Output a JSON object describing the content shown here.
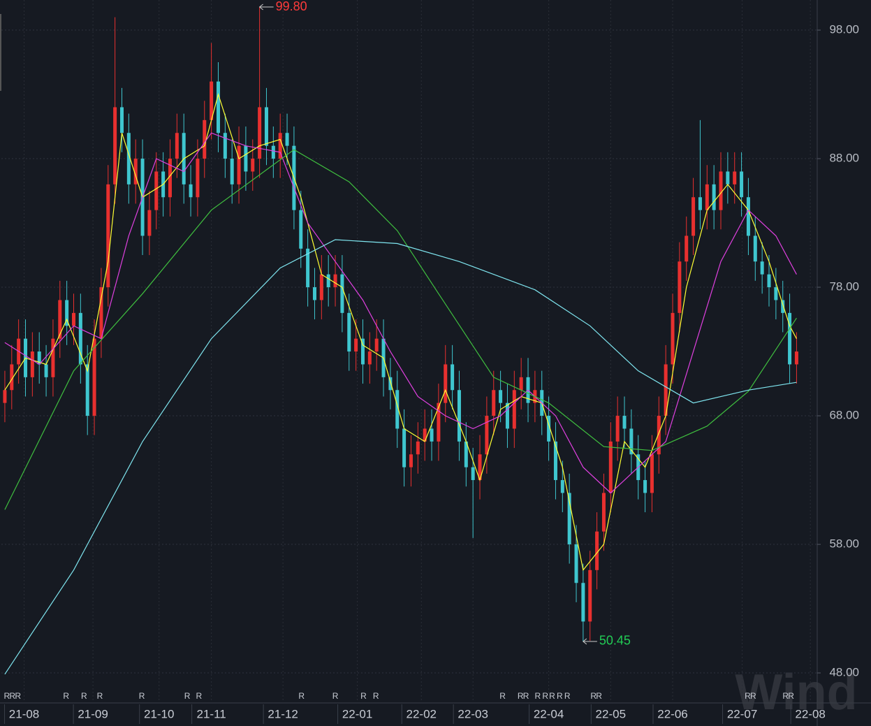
{
  "chart_data": {
    "type": "candlestick",
    "x": [
      0,
      1,
      2,
      3,
      4,
      5,
      6,
      7,
      8,
      9,
      10,
      11,
      12,
      13,
      14,
      15,
      16,
      17,
      18,
      19,
      20,
      21,
      22,
      23,
      24,
      25,
      26,
      27,
      28,
      29,
      30,
      31,
      32,
      33,
      34,
      35,
      36,
      37,
      38,
      39,
      40,
      41,
      42,
      43,
      44,
      45,
      46,
      47,
      48,
      49,
      50,
      51,
      52,
      53,
      54,
      55,
      56,
      57,
      58,
      59,
      60,
      61,
      62,
      63,
      64,
      65,
      66,
      67,
      68,
      69,
      70,
      71,
      72,
      73,
      74,
      75,
      76,
      77,
      78,
      79,
      80,
      81,
      82,
      83,
      84,
      85,
      86,
      87,
      88,
      89,
      90,
      91,
      92,
      93,
      94,
      95,
      96,
      97,
      98,
      99,
      100,
      101,
      102,
      103,
      104,
      105,
      106,
      107,
      108,
      109,
      110,
      111,
      112,
      113,
      114,
      115
    ],
    "open": [
      69,
      70,
      72,
      74,
      71,
      73,
      72,
      71,
      74,
      77,
      75,
      76,
      72,
      68,
      74,
      78,
      86,
      92,
      90,
      86,
      88,
      82,
      84,
      87,
      85,
      88,
      90,
      86,
      85,
      88,
      91,
      94,
      90,
      88,
      86,
      89,
      87,
      88,
      92,
      89,
      88,
      90,
      89,
      84,
      81,
      78,
      77,
      79,
      78,
      79,
      76,
      73,
      74,
      72,
      73,
      74,
      71,
      70,
      67,
      64,
      65,
      66,
      67,
      66,
      69,
      72,
      70,
      66,
      64,
      63,
      65,
      68,
      70,
      69,
      67,
      70,
      71,
      69,
      70,
      68,
      66,
      63,
      62,
      58,
      55,
      52,
      56,
      59,
      62,
      66,
      68,
      67,
      65,
      63,
      62,
      65,
      68,
      72,
      76,
      80,
      82,
      85,
      84,
      86,
      84,
      87,
      86,
      87,
      85,
      82,
      80,
      79,
      78,
      77,
      76,
      72
    ],
    "high": [
      71.5,
      73.5,
      75.5,
      75.5,
      74.5,
      74.5,
      73.5,
      75.5,
      78.5,
      78.5,
      77.5,
      77.5,
      73.5,
      75.5,
      79.5,
      87.5,
      99,
      93.5,
      91.5,
      89.5,
      89.5,
      85.5,
      88.5,
      88.5,
      89.5,
      91.5,
      91.5,
      87.5,
      89.5,
      92.5,
      97,
      95.5,
      91.5,
      89.5,
      90.5,
      90.5,
      89.5,
      99.8,
      93.5,
      90.5,
      91.5,
      91.5,
      90.5,
      85.5,
      82.5,
      79.5,
      80.5,
      80.5,
      80.5,
      80.5,
      77.5,
      75.5,
      75.5,
      74.5,
      75.5,
      75.5,
      72.5,
      71.5,
      68.5,
      66.5,
      67.5,
      68.5,
      68.5,
      70.5,
      73.5,
      73.5,
      71.5,
      67.5,
      65.5,
      66.5,
      69.5,
      71.5,
      71.5,
      70.5,
      71.5,
      72.5,
      72.5,
      71.5,
      71.5,
      69.5,
      67.5,
      64.5,
      63.5,
      59.5,
      56.5,
      57.5,
      60.5,
      63.5,
      67.5,
      69.5,
      69.5,
      68.5,
      66.5,
      64.5,
      66.5,
      69.5,
      73.5,
      77.5,
      81.5,
      83.5,
      86.5,
      91,
      87.5,
      87.5,
      88.5,
      88.5,
      88.5,
      88.5,
      86.5,
      83.5,
      81.5,
      80.5,
      79.5,
      78.5,
      77.5,
      74.5
    ],
    "low": [
      67.5,
      68.5,
      70.5,
      69.5,
      69.5,
      70.5,
      69.5,
      69.5,
      72.5,
      73.5,
      73.5,
      70.5,
      66.5,
      66.5,
      72.5,
      76.5,
      84.5,
      88.5,
      84.5,
      84.5,
      80.5,
      80.5,
      82.5,
      83.5,
      83.5,
      86.5,
      84.5,
      83.5,
      83.5,
      86.5,
      89.5,
      88.5,
      86.5,
      84.5,
      84.5,
      85.5,
      85.5,
      86.5,
      87.5,
      86.5,
      86.5,
      87.5,
      82.5,
      79.5,
      76.5,
      75.5,
      75.5,
      76.5,
      76.5,
      74.5,
      71.5,
      71.5,
      70.5,
      70.5,
      71.5,
      69.5,
      68.5,
      65.5,
      62.5,
      62.5,
      63.5,
      64.5,
      64.5,
      64.5,
      67.5,
      68.5,
      64.5,
      62.5,
      58.5,
      61.5,
      63.5,
      66.5,
      67.5,
      65.5,
      65.5,
      68.5,
      67.5,
      67.5,
      66.5,
      64.5,
      61.5,
      60.5,
      56.5,
      53.5,
      50.45,
      50.5,
      54.5,
      57.5,
      60.5,
      64.5,
      65.5,
      63.5,
      61.5,
      60.5,
      60.5,
      63.5,
      66.5,
      70.5,
      74.5,
      78.5,
      80.5,
      82.5,
      82.5,
      82.5,
      82.5,
      84.5,
      84.5,
      83.5,
      80.5,
      78.5,
      77.5,
      76.5,
      75.5,
      74.5,
      70.5,
      70.5
    ],
    "close": [
      70,
      72,
      74,
      71,
      73,
      72,
      71,
      74,
      77,
      75,
      76,
      72,
      68,
      74,
      78,
      86,
      92,
      90,
      86,
      88,
      82,
      84,
      87,
      85,
      88,
      90,
      86,
      85,
      88,
      91,
      94,
      90,
      88,
      86,
      89,
      87,
      88,
      92,
      89,
      88,
      90,
      89,
      84,
      81,
      78,
      77,
      79,
      78,
      79,
      76,
      73,
      74,
      72,
      73,
      74,
      71,
      70,
      67,
      64,
      65,
      66,
      67,
      66,
      69,
      72,
      70,
      66,
      64,
      63,
      65,
      68,
      70,
      69,
      67,
      70,
      71,
      69,
      70,
      68,
      66,
      63,
      62,
      58,
      55,
      52,
      56,
      59,
      62,
      66,
      68,
      67,
      65,
      63,
      62,
      65,
      68,
      72,
      76,
      80,
      82,
      85,
      84,
      86,
      84,
      87,
      86,
      87,
      85,
      82,
      80,
      79,
      78,
      77,
      76,
      72,
      73
    ],
    "up_color": "#e8302f",
    "down_color": "#3fc6cf",
    "lines": [
      {
        "color": "#ffff33",
        "x": [
          0,
          3,
          6,
          9,
          12,
          15,
          17,
          20,
          23,
          26,
          29,
          31,
          34,
          37,
          40,
          43,
          46,
          49,
          52,
          55,
          58,
          61,
          64,
          67,
          69,
          72,
          75,
          78,
          81,
          84,
          87,
          90,
          93,
          96,
          99,
          102,
          105,
          108,
          111,
          114,
          115
        ],
        "values": [
          70,
          72.5,
          72,
          75.5,
          71.5,
          80,
          90,
          85,
          86,
          88,
          89,
          93,
          88,
          89,
          89.5,
          85,
          79,
          78,
          73.5,
          72.5,
          67,
          66,
          70,
          66,
          63,
          68.5,
          69.5,
          69,
          64,
          56,
          58,
          66,
          64,
          68,
          78,
          84,
          86,
          84,
          80,
          75,
          74
        ]
      },
      {
        "color": "#e040e0",
        "x": [
          0,
          5,
          10,
          14,
          18,
          22,
          26,
          30,
          35,
          40,
          44,
          48,
          52,
          56,
          60,
          64,
          68,
          72,
          76,
          80,
          84,
          88,
          92,
          96,
          100,
          104,
          108,
          112,
          115
        ],
        "values": [
          73.7,
          72,
          75,
          74,
          82,
          88,
          87,
          90,
          89,
          88.5,
          83,
          80,
          77,
          73,
          69.5,
          68,
          67,
          68,
          70,
          68,
          64,
          62,
          64,
          66,
          73,
          80,
          84,
          82,
          79
        ]
      },
      {
        "color": "#3fbf3f",
        "x": [
          0,
          10,
          20,
          30,
          42,
          50,
          57,
          63,
          71,
          79,
          87,
          94,
          102,
          108,
          115
        ],
        "values": [
          60.7,
          71.5,
          77.5,
          84,
          88.7,
          86.2,
          82.4,
          77.5,
          71,
          69,
          65.6,
          65.3,
          67.2,
          69.9,
          75.6
        ]
      },
      {
        "color": "#7fe6f0",
        "x": [
          0,
          10,
          20,
          30,
          40,
          48,
          57,
          66,
          77,
          85,
          92,
          100,
          108,
          115
        ],
        "values": [
          47.9,
          56,
          66,
          74,
          79.5,
          81.7,
          81.4,
          80,
          77.8,
          75,
          71.5,
          69,
          70,
          70.6
        ]
      }
    ],
    "xlim": [
      -0.5,
      118
    ],
    "xticks": [
      {
        "value": 2.8,
        "label": "21-08"
      },
      {
        "value": 12.8,
        "label": "21-09"
      },
      {
        "value": 22.4,
        "label": "21-10"
      },
      {
        "value": 30,
        "label": "21-11"
      },
      {
        "value": 40.4,
        "label": "21-12"
      },
      {
        "value": 51.2,
        "label": "22-01"
      },
      {
        "value": 60.5,
        "label": "22-02"
      },
      {
        "value": 68,
        "label": "22-03"
      },
      {
        "value": 79,
        "label": "22-04"
      },
      {
        "value": 88,
        "label": "22-05"
      },
      {
        "value": 97,
        "label": "22-06"
      },
      {
        "value": 107.1,
        "label": "22-07"
      },
      {
        "value": 117,
        "label": "22-08"
      }
    ],
    "ylim": [
      45.72,
      100.34
    ],
    "yticks": [
      {
        "value": 48,
        "label": "48.00"
      },
      {
        "value": 58,
        "label": "58.00"
      },
      {
        "value": 68,
        "label": "68.00"
      },
      {
        "value": 78,
        "label": "78.00"
      },
      {
        "value": 88,
        "label": "88.00"
      },
      {
        "value": 98,
        "label": "98.00"
      }
    ],
    "grid": true,
    "annotations": [
      {
        "text": "99.80",
        "x": 37,
        "y": 99.8,
        "color": "#ff3b3b"
      },
      {
        "text": "50.45",
        "x": 84,
        "y": 50.45,
        "color": "#22cc55"
      }
    ],
    "r_markers": {
      "label": "R",
      "x": [
        0.3,
        1.1,
        1.9,
        8.9,
        11.5,
        13.8,
        19.9,
        26.5,
        28.2,
        43.1,
        48,
        52.1,
        53.9,
        72.3,
        74.9,
        75.7,
        77.4,
        78.5,
        79.5,
        80.6,
        81.7,
        85.5,
        86.3,
        107.9,
        108.7,
        113.4,
        114.2
      ]
    },
    "watermark": "Wind"
  }
}
